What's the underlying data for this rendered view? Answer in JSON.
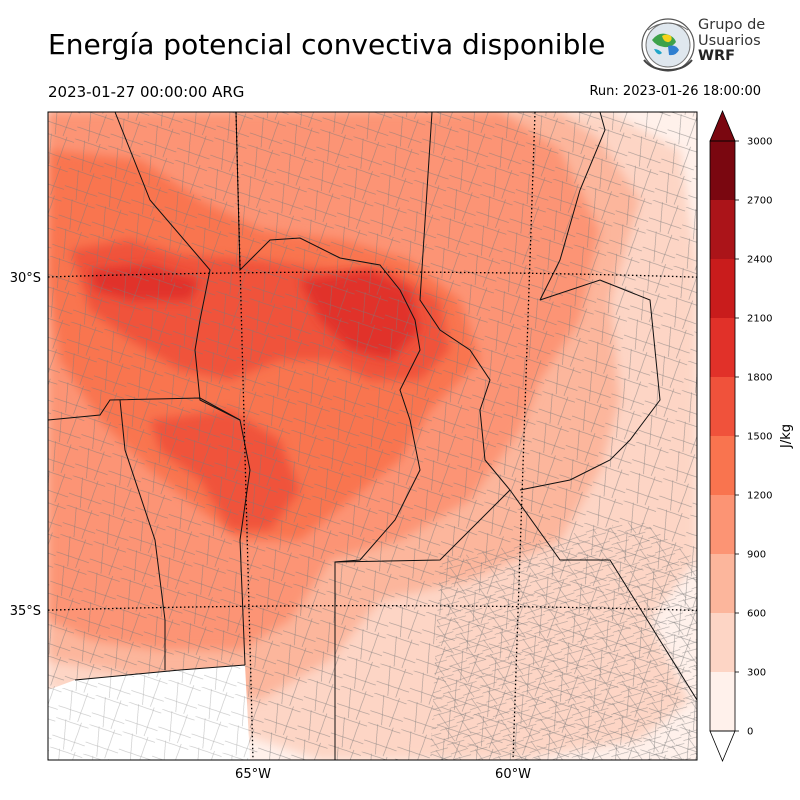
{
  "header": {
    "title": "Energía potencial convectiva disponible",
    "valid_time": "2023-01-27 00:00:00 ARG",
    "run_time": "Run: 2023-01-26 18:00:00"
  },
  "logo": {
    "line1": "Grupo de",
    "line2": "Usuarios",
    "line3": "WRF"
  },
  "chart_data": {
    "type": "heatmap",
    "title": "Energía potencial convectiva disponible",
    "x_axis": {
      "ticks": [
        {
          "value": -65,
          "label": "65°W"
        },
        {
          "value": -60,
          "label": "60°W"
        }
      ]
    },
    "y_axis": {
      "ticks": [
        {
          "value": -30,
          "label": "30°S"
        },
        {
          "value": -35,
          "label": "35°S"
        }
      ]
    },
    "colorbar": {
      "label": "J/kg",
      "levels": [
        0,
        300,
        600,
        900,
        1200,
        1500,
        1800,
        2100,
        2400,
        2700,
        3000
      ],
      "tick_labels": [
        "0",
        "300",
        "600",
        "900",
        "1200",
        "1500",
        "1800",
        "2100",
        "2400",
        "2700",
        "3000"
      ],
      "colors": [
        "#fff1eb",
        "#fdd5c5",
        "#fcb69c",
        "#fc9474",
        "#f9744f",
        "#f0523b",
        "#e13129",
        "#c91c1c",
        "#ab1419",
        "#7a0710"
      ],
      "extend": "both"
    },
    "grid": true
  }
}
